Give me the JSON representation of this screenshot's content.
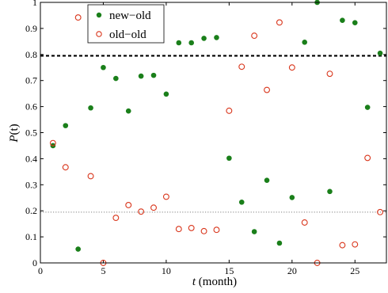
{
  "chart_data": {
    "type": "scatter",
    "xlabel_var": "t",
    "xlabel_unit": " (month)",
    "ylabel_var": "P",
    "ylabel_arg": "(t)",
    "xlim": [
      0,
      27.5
    ],
    "ylim": [
      0,
      1
    ],
    "x_ticks": [
      0,
      5,
      10,
      15,
      20,
      25
    ],
    "y_ticks": [
      0,
      0.1,
      0.2,
      0.3,
      0.4,
      0.5,
      0.6,
      0.7,
      0.8,
      0.9,
      1
    ],
    "x_tick_labels": [
      "0",
      "5",
      "10",
      "15",
      "20",
      "25"
    ],
    "y_tick_labels": [
      "0",
      "0.1",
      "0.2",
      "0.3",
      "0.4",
      "0.5",
      "0.6",
      "0.7",
      "0.8",
      "0.9",
      "1"
    ],
    "grid": false,
    "legend_position": "top-left",
    "reference_lines": [
      {
        "y": 0.795,
        "style": "dashed",
        "color": "#000000"
      },
      {
        "y": 0.195,
        "style": "dotted",
        "color": "#9a9a9a"
      }
    ],
    "series": [
      {
        "name": "new−old",
        "marker": "filled-circle",
        "color": "#1a7f1a",
        "points": [
          [
            1,
            0.45
          ],
          [
            2,
            0.527
          ],
          [
            3,
            0.053
          ],
          [
            4,
            0.595
          ],
          [
            5,
            0.75
          ],
          [
            6,
            0.708
          ],
          [
            7,
            0.583
          ],
          [
            8,
            0.717
          ],
          [
            9,
            0.72
          ],
          [
            10,
            0.648
          ],
          [
            11,
            0.845
          ],
          [
            12,
            0.845
          ],
          [
            13,
            0.862
          ],
          [
            14,
            0.865
          ],
          [
            15,
            0.402
          ],
          [
            16,
            0.233
          ],
          [
            17,
            0.12
          ],
          [
            18,
            0.317
          ],
          [
            19,
            0.076
          ],
          [
            20,
            0.251
          ],
          [
            21,
            0.847
          ],
          [
            22,
            1.0
          ],
          [
            23,
            0.274
          ],
          [
            24,
            0.931
          ],
          [
            25,
            0.922
          ],
          [
            26,
            0.597
          ],
          [
            27,
            0.805
          ]
        ]
      },
      {
        "name": "old−old",
        "marker": "open-circle",
        "color": "#d9361c",
        "points": [
          [
            1,
            0.46
          ],
          [
            2,
            0.367
          ],
          [
            3,
            0.942
          ],
          [
            4,
            0.333
          ],
          [
            5,
            0.0
          ],
          [
            6,
            0.173
          ],
          [
            7,
            0.222
          ],
          [
            8,
            0.197
          ],
          [
            9,
            0.212
          ],
          [
            10,
            0.254
          ],
          [
            11,
            0.13
          ],
          [
            12,
            0.134
          ],
          [
            13,
            0.122
          ],
          [
            14,
            0.127
          ],
          [
            15,
            0.584
          ],
          [
            16,
            0.753
          ],
          [
            17,
            0.872
          ],
          [
            18,
            0.664
          ],
          [
            19,
            0.923
          ],
          [
            20,
            0.75
          ],
          [
            21,
            0.155
          ],
          [
            22,
            0.0
          ],
          [
            23,
            0.726
          ],
          [
            24,
            0.068
          ],
          [
            25,
            0.071
          ],
          [
            26,
            0.403
          ],
          [
            27,
            0.195
          ]
        ]
      }
    ]
  }
}
